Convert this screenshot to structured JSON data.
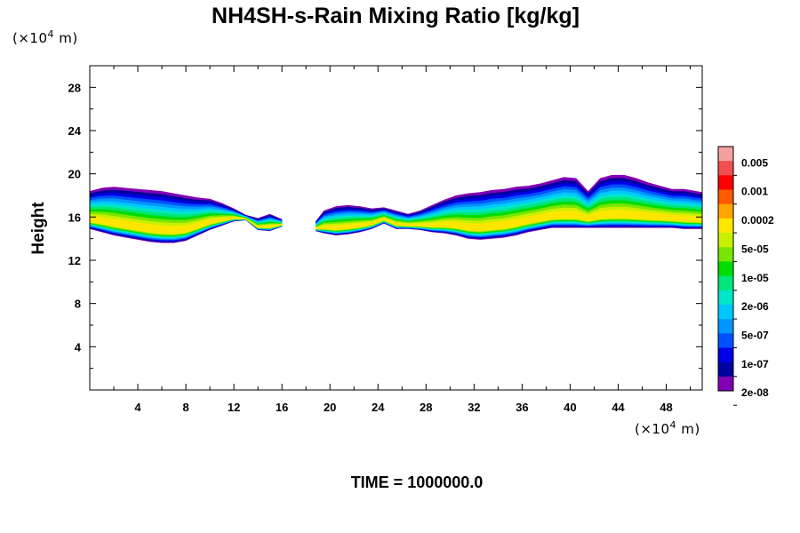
{
  "chart_data": {
    "type": "heatmap",
    "title": "NH4SH-s-Rain Mixing Ratio [kg/kg]",
    "ylabel": "Height",
    "xunit": "(×10",
    "yunit": "(×10",
    "unit_exp": "4",
    "unit_tail": " m)",
    "footer": "TIME = 1000000.0",
    "xlim": [
      0,
      51
    ],
    "ylim": [
      0,
      30
    ],
    "x_ticks": [
      "4",
      "8",
      "12",
      "16",
      "20",
      "24",
      "28",
      "32",
      "36",
      "40",
      "44",
      "48"
    ],
    "y_ticks": [
      "4",
      "8",
      "12",
      "16",
      "20",
      "24",
      "28"
    ],
    "colorbar": {
      "labels": [
        "0.005",
        "0.001",
        "0.0002",
        "5e-05",
        "1e-05",
        "2e-06",
        "5e-07",
        "1e-07",
        "2e-08"
      ],
      "colors": [
        "#f5a0a0",
        "#f05050",
        "#ff0000",
        "#ff5a00",
        "#ffa500",
        "#ffe600",
        "#c8f000",
        "#78e600",
        "#00dc00",
        "#00e678",
        "#00e6c8",
        "#00c8ff",
        "#0096ff",
        "#0050ff",
        "#0000e6",
        "#0000a0",
        "#8200b4"
      ]
    },
    "fields": [
      {
        "x": [
          0,
          1,
          2,
          3,
          4,
          5,
          6,
          7,
          8,
          9,
          10,
          11,
          12,
          13,
          14,
          15,
          16
        ],
        "top": [
          18.4,
          18.7,
          18.8,
          18.7,
          18.6,
          18.5,
          18.4,
          18.2,
          18.0,
          17.8,
          17.7,
          17.3,
          16.8,
          16.2,
          15.9,
          16.3,
          15.8
        ],
        "bottom": [
          14.9,
          14.6,
          14.3,
          14.1,
          13.9,
          13.7,
          13.6,
          13.6,
          13.8,
          14.3,
          14.8,
          15.2,
          15.6,
          15.7,
          14.8,
          14.7,
          15.1
        ]
      },
      {
        "x": [
          18.8,
          19.5,
          20.5,
          21.5,
          22.5,
          23.5,
          24.5,
          25.5,
          26.5,
          27.5,
          28.5,
          29.5,
          30.5,
          31.5,
          32.5,
          33.5,
          34.5,
          35.5,
          36.5,
          37.5,
          38.5,
          39.5,
          40.5,
          41.5,
          42.5,
          43.5,
          44.5,
          45.5,
          46.5,
          47.5,
          48.5,
          49.5,
          50.5,
          51
        ],
        "top": [
          15.6,
          16.6,
          17.0,
          17.1,
          17.0,
          16.8,
          16.9,
          16.6,
          16.3,
          16.6,
          17.1,
          17.6,
          18.0,
          18.2,
          18.3,
          18.5,
          18.6,
          18.8,
          18.9,
          19.1,
          19.4,
          19.7,
          19.6,
          18.4,
          19.6,
          19.9,
          19.9,
          19.6,
          19.2,
          18.9,
          18.6,
          18.6,
          18.4,
          18.3
        ],
        "bottom": [
          14.7,
          14.5,
          14.3,
          14.4,
          14.6,
          14.9,
          15.4,
          14.9,
          14.9,
          14.8,
          14.6,
          14.5,
          14.3,
          14.0,
          13.9,
          14.0,
          14.1,
          14.3,
          14.6,
          14.8,
          15.0,
          15.0,
          15.0,
          15.0,
          15.0,
          15.0,
          15.0,
          15.0,
          15.0,
          15.0,
          15.0,
          14.9,
          14.9,
          14.9
        ]
      }
    ]
  }
}
